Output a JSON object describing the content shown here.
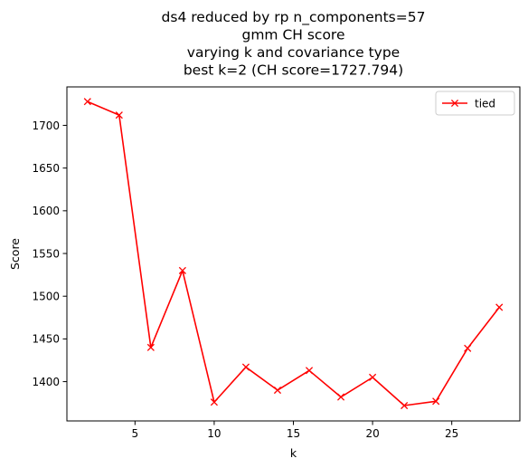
{
  "chart_data": {
    "type": "line",
    "title_lines": [
      "ds4 reduced by rp n_components=57",
      "gmm CH score",
      "varying k and covariance type",
      "best k=2 (CH score=1727.794)"
    ],
    "xlabel": "k",
    "ylabel": "Score",
    "xlim": [
      0.7,
      29.3
    ],
    "ylim": [
      1354,
      1745
    ],
    "xticks": [
      5,
      10,
      15,
      20,
      25
    ],
    "yticks": [
      1400,
      1450,
      1500,
      1550,
      1600,
      1650,
      1700
    ],
    "grid": false,
    "legend_position": "top-right",
    "series": [
      {
        "name": "tied",
        "color": "#ff0000",
        "marker": "x",
        "x": [
          2,
          4,
          6,
          8,
          10,
          12,
          14,
          16,
          18,
          20,
          22,
          24,
          26,
          28
        ],
        "y": [
          1727.794,
          1712,
          1440,
          1530,
          1376,
          1417,
          1390,
          1413,
          1382,
          1405,
          1372,
          1377,
          1439,
          1487
        ]
      }
    ]
  }
}
